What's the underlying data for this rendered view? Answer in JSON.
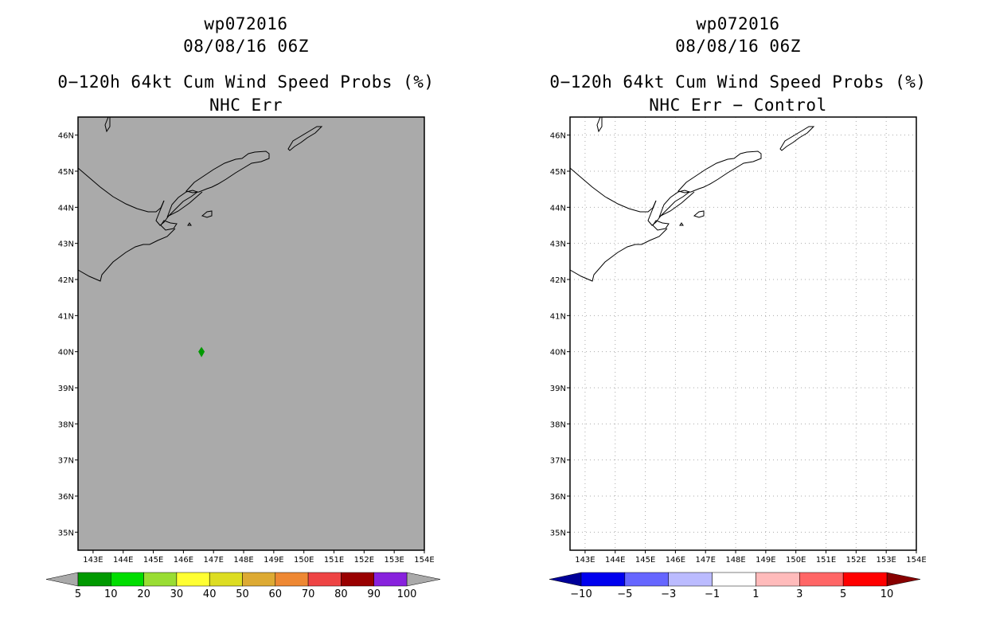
{
  "panels": [
    {
      "id": "left",
      "storm_id": "wp072016",
      "datetime": "08/08/16 06Z",
      "product": "0−120h 64kt Cum Wind Speed Probs (%)",
      "subtitle": "NHC Err",
      "background": "#aaaaaa",
      "grid": false,
      "storm_marker": {
        "lon": 146.6,
        "lat": 40.0,
        "color": "#009900",
        "icon": "diamond-icon"
      },
      "colorbar": {
        "colors": [
          "#009900",
          "#00dd00",
          "#99dd33",
          "#ffff33",
          "#dddd22",
          "#ddaa33",
          "#ee8833",
          "#ee4444",
          "#990000",
          "#8822dd"
        ],
        "under_color": "#aaaaaa",
        "over_color": "#aaaaaa",
        "labels": [
          "5",
          "10",
          "20",
          "30",
          "40",
          "50",
          "60",
          "70",
          "80",
          "90",
          "100"
        ]
      }
    },
    {
      "id": "right",
      "storm_id": "wp072016",
      "datetime": "08/08/16 06Z",
      "product": "0−120h 64kt Cum Wind Speed Probs (%)",
      "subtitle": "NHC Err − Control",
      "background": "#ffffff",
      "grid": true,
      "colorbar": {
        "colors": [
          "#0000ee",
          "#6666ff",
          "#bbbbff",
          "#ffffff",
          "#ffbbbb",
          "#ff6666",
          "#ff0000"
        ],
        "under_color": "#000099",
        "over_color": "#880000",
        "labels": [
          "−10",
          "−5",
          "−3",
          "−1",
          "1",
          "3",
          "5",
          "10"
        ]
      }
    }
  ],
  "map_extent": {
    "lon_min": 142.5,
    "lon_max": 154.0,
    "lat_min": 34.5,
    "lat_max": 46.5
  },
  "lon_ticks": [
    "143E",
    "144E",
    "145E",
    "146E",
    "147E",
    "148E",
    "149E",
    "150E",
    "151E",
    "152E",
    "153E",
    "154E"
  ],
  "lat_ticks": [
    "35N",
    "36N",
    "37N",
    "38N",
    "39N",
    "40N",
    "41N",
    "42N",
    "43N",
    "44N",
    "45N",
    "46N"
  ],
  "coast_color": "#000000"
}
